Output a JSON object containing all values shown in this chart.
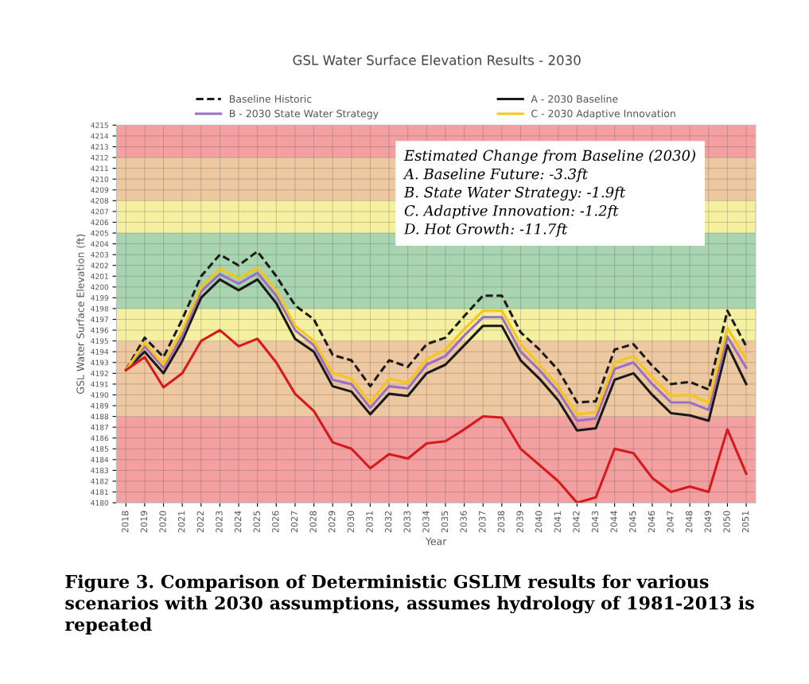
{
  "chart_data": {
    "type": "line",
    "title": "GSL Water Surface Elevation Results - 2030",
    "xlabel": "Year",
    "ylabel": "GSL Water Surface Elevation (ft)",
    "categories": [
      "2018",
      "2019",
      "2020",
      "2021",
      "2022",
      "2023",
      "2024",
      "2025",
      "2026",
      "2027",
      "2028",
      "2029",
      "2030",
      "2031",
      "2032",
      "2033",
      "2034",
      "2035",
      "2036",
      "2037",
      "2038",
      "2039",
      "2040",
      "2041",
      "2042",
      "2043",
      "2044",
      "2045",
      "2046",
      "2047",
      "2048",
      "2049",
      "2050",
      "2051"
    ],
    "series": [
      {
        "name": "Baseline Historic",
        "color": "#1a1a1a",
        "line_style": "dashed",
        "values": [
          4192.3,
          4195.3,
          4193.5,
          4197,
          4201,
          4203,
          4202,
          4203.3,
          4201,
          4198.3,
          4197,
          4193.7,
          4193.2,
          4190.8,
          4193.2,
          4192.6,
          4194.7,
          4195.3,
          4197.3,
          4199.2,
          4199.2,
          4195.8,
          4194.2,
          4192.3,
          4189.3,
          4189.4,
          4194.2,
          4194.7,
          4192.7,
          4191,
          4191.2,
          4190.5,
          4197.8,
          4194.5
        ]
      },
      {
        "name": "A - 2030 Baseline",
        "color": "#1a1a1a",
        "values": [
          4192.3,
          4194,
          4192,
          4195,
          4199,
          4200.7,
          4199.7,
          4200.7,
          4198.5,
          4195.2,
          4194,
          4190.8,
          4190.3,
          4188.2,
          4190.1,
          4189.9,
          4192,
          4192.8,
          4194.6,
          4196.4,
          4196.4,
          4193.2,
          4191.5,
          4189.5,
          4186.7,
          4186.9,
          4191.4,
          4192,
          4190,
          4188.3,
          4188.1,
          4187.6,
          4194.6,
          4191
        ]
      },
      {
        "name": "B - 2030 State Water Strategy",
        "color": "#9b6fc4",
        "values": [
          4192.3,
          4194.5,
          4192.5,
          4195.5,
          4199.6,
          4201.2,
          4200.3,
          4201.3,
          4199.2,
          4196,
          4194.6,
          4191.4,
          4191,
          4188.8,
          4190.8,
          4190.6,
          4192.8,
          4193.6,
          4195.5,
          4197.2,
          4197.2,
          4194,
          4192.3,
          4190.3,
          4187.6,
          4187.8,
          4192.4,
          4193,
          4191,
          4189.3,
          4189.3,
          4188.6,
          4195.4,
          4192.5
        ]
      },
      {
        "name": "C - 2030 Adaptive Innovation",
        "color": "#f5c518",
        "values": [
          4192.3,
          4194.8,
          4192.8,
          4196,
          4200,
          4201.7,
          4200.8,
          4201.8,
          4199.7,
          4196.4,
          4195,
          4192,
          4191.5,
          4189.3,
          4191.5,
          4191.1,
          4193.3,
          4194.2,
          4196.1,
          4197.8,
          4197.8,
          4194.7,
          4192.8,
          4190.8,
          4188.2,
          4188.4,
          4193,
          4193.6,
          4191.6,
          4189.9,
          4190,
          4189.3,
          4196.2,
          4193.3
        ]
      },
      {
        "color": "#d7191c",
        "values": [
          4192.3,
          4193.5,
          4190.7,
          4192,
          4195,
          4196,
          4194.5,
          4195.2,
          4193,
          4190.1,
          4188.5,
          4185.6,
          4185,
          4183.2,
          4184.5,
          4184.1,
          4185.5,
          4185.7,
          4186.8,
          4188,
          4187.9,
          4185,
          4183.5,
          4182,
          4180,
          4180.5,
          4185,
          4184.6,
          4182.3,
          4181,
          4181.5,
          4181,
          4186.8,
          4182.7
        ]
      }
    ],
    "ylim": [
      4180,
      4215
    ],
    "yticks": [
      4180,
      4181,
      4182,
      4183,
      4184,
      4185,
      4186,
      4187,
      4188,
      4189,
      4190,
      4191,
      4192,
      4193,
      4194,
      4195,
      4196,
      4197,
      4198,
      4199,
      4200,
      4201,
      4202,
      4203,
      4204,
      4205,
      4206,
      4207,
      4208,
      4209,
      4210,
      4211,
      4212,
      4213,
      4214,
      4215
    ],
    "bands": [
      {
        "axis": "y",
        "from": 4180,
        "to": 4188,
        "color": "#f4a0a0"
      },
      {
        "axis": "y",
        "from": 4188,
        "to": 4195,
        "color": "#eec8a0"
      },
      {
        "axis": "y",
        "from": 4195,
        "to": 4198,
        "color": "#f5f0a0"
      },
      {
        "axis": "y",
        "from": 4198,
        "to": 4205,
        "color": "#a8d4b0"
      },
      {
        "axis": "y",
        "from": 4205,
        "to": 4208,
        "color": "#f5f0a0"
      },
      {
        "axis": "y",
        "from": 4208,
        "to": 4212,
        "color": "#eec8a0"
      },
      {
        "axis": "y",
        "from": 4212,
        "to": 4215,
        "color": "#f4a0a0"
      }
    ],
    "annotations": [
      "Estimated Change from Baseline (2030)\nA. Baseline Future: -3.3ft\nB. State Water Strategy: -1.9ft\nC. Adaptive Innovation: -1.2ft\nD. Hot Growth: -11.7ft",
      "Figure 3. Comparison of Deterministic GSLIM results for various scenarios with 2030 assumptions, assumes hydrology of 1981-2013 is repeated"
    ],
    "grid": true,
    "legend": "top",
    "marker": "none"
  }
}
